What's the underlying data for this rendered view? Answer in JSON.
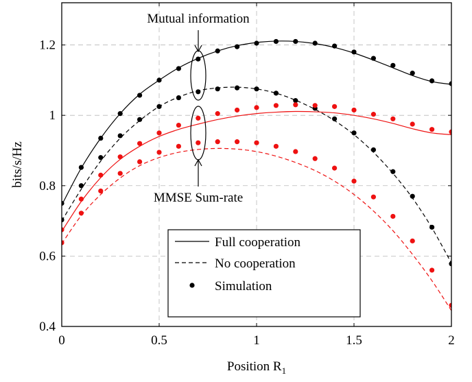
{
  "chart_data": {
    "type": "line",
    "xlabel": "Position R",
    "xlabel_sub": "1",
    "ylabel": "bits/s/Hz",
    "xlim": [
      0,
      2
    ],
    "ylim": [
      0.4,
      1.32
    ],
    "xticks": [
      0,
      0.5,
      1,
      1.5,
      2
    ],
    "xtick_labels": [
      "0",
      "0.5",
      "1",
      "1.5",
      "2"
    ],
    "yticks": [
      0.4,
      0.6,
      0.8,
      1.0,
      1.2
    ],
    "ytick_labels": [
      "0.4",
      "0.6",
      "0.8",
      "1",
      "1.2"
    ],
    "grid": true,
    "legend_position": "bottom-center",
    "legend": [
      {
        "label": "Full cooperation",
        "style": "solid"
      },
      {
        "label": "No cooperation",
        "style": "dashed"
      },
      {
        "label": "Simulation",
        "style": "marker"
      }
    ],
    "annotations": [
      {
        "text": "Mutual information",
        "x": 0.7,
        "y": 1.13
      },
      {
        "text": "MMSE Sum-rate",
        "x": 0.7,
        "y": 0.95
      }
    ],
    "colors": {
      "mutual_information": "#000000",
      "mmse": "#ee1111"
    },
    "series": [
      {
        "group": "mutual_information",
        "style": "solid",
        "color": "#000000",
        "x": [
          0,
          0.1,
          0.2,
          0.3,
          0.4,
          0.5,
          0.6,
          0.7,
          0.8,
          0.9,
          1.0,
          1.1,
          1.2,
          1.3,
          1.4,
          1.5,
          1.6,
          1.7,
          1.8,
          1.9,
          2.0
        ],
        "y": [
          0.745,
          0.85,
          0.935,
          1.005,
          1.06,
          1.1,
          1.135,
          1.162,
          1.183,
          1.198,
          1.207,
          1.211,
          1.21,
          1.204,
          1.193,
          1.177,
          1.157,
          1.135,
          1.113,
          1.096,
          1.088
        ]
      },
      {
        "group": "mutual_information",
        "style": "dashed",
        "color": "#000000",
        "x": [
          0,
          0.1,
          0.2,
          0.3,
          0.4,
          0.5,
          0.6,
          0.7,
          0.8,
          0.9,
          1.0,
          1.1,
          1.2,
          1.3,
          1.4,
          1.5,
          1.6,
          1.7,
          1.8,
          1.9,
          2.0
        ],
        "y": [
          0.7,
          0.79,
          0.87,
          0.935,
          0.985,
          1.025,
          1.052,
          1.07,
          1.078,
          1.08,
          1.075,
          1.063,
          1.043,
          1.017,
          0.985,
          0.945,
          0.895,
          0.835,
          0.765,
          0.68,
          0.58
        ]
      },
      {
        "group": "mmse",
        "style": "solid",
        "color": "#ee1111",
        "x": [
          0,
          0.1,
          0.2,
          0.3,
          0.4,
          0.5,
          0.6,
          0.7,
          0.8,
          0.9,
          1.0,
          1.1,
          1.2,
          1.3,
          1.4,
          1.5,
          1.6,
          1.7,
          1.8,
          1.9,
          2.0
        ],
        "y": [
          0.67,
          0.755,
          0.823,
          0.875,
          0.912,
          0.94,
          0.96,
          0.975,
          0.988,
          0.998,
          1.005,
          1.009,
          1.011,
          1.01,
          1.007,
          1.0,
          0.99,
          0.977,
          0.962,
          0.95,
          0.945
        ]
      },
      {
        "group": "mmse",
        "style": "dashed",
        "color": "#ee1111",
        "x": [
          0,
          0.1,
          0.2,
          0.3,
          0.4,
          0.5,
          0.6,
          0.7,
          0.8,
          0.9,
          1.0,
          1.1,
          1.2,
          1.3,
          1.4,
          1.5,
          1.6,
          1.7,
          1.8,
          1.9,
          2.0
        ],
        "y": [
          0.635,
          0.715,
          0.775,
          0.822,
          0.857,
          0.88,
          0.895,
          0.903,
          0.906,
          0.904,
          0.897,
          0.884,
          0.866,
          0.843,
          0.813,
          0.775,
          0.728,
          0.672,
          0.605,
          0.53,
          0.445
        ]
      },
      {
        "group": "mutual_information",
        "style": "marker",
        "color": "#000000",
        "x": [
          0,
          0.1,
          0.2,
          0.3,
          0.4,
          0.5,
          0.6,
          0.7,
          0.8,
          0.9,
          1.0,
          1.1,
          1.2,
          1.3,
          1.4,
          1.5,
          1.6,
          1.7,
          1.8,
          1.9,
          2.0
        ],
        "y": [
          0.75,
          0.852,
          0.935,
          1.005,
          1.057,
          1.1,
          1.133,
          1.16,
          1.183,
          1.195,
          1.205,
          1.21,
          1.21,
          1.205,
          1.197,
          1.18,
          1.162,
          1.142,
          1.12,
          1.098,
          1.09
        ]
      },
      {
        "group": "mutual_information",
        "style": "marker",
        "color": "#000000",
        "x": [
          0,
          0.1,
          0.2,
          0.3,
          0.4,
          0.5,
          0.6,
          0.7,
          0.8,
          0.9,
          1.0,
          1.1,
          1.2,
          1.3,
          1.4,
          1.5,
          1.6,
          1.7,
          1.8,
          1.9,
          2.0
        ],
        "y": [
          0.703,
          0.8,
          0.88,
          0.942,
          0.988,
          1.025,
          1.05,
          1.067,
          1.075,
          1.078,
          1.075,
          1.063,
          1.042,
          1.02,
          0.99,
          0.95,
          0.902,
          0.84,
          0.77,
          0.682,
          0.578
        ]
      },
      {
        "group": "mmse",
        "style": "marker",
        "color": "#ee1111",
        "x": [
          0,
          0.1,
          0.2,
          0.3,
          0.4,
          0.5,
          0.6,
          0.7,
          0.8,
          0.9,
          1.0,
          1.1,
          1.2,
          1.3,
          1.4,
          1.5,
          1.6,
          1.7,
          1.8,
          1.9,
          2.0
        ],
        "y": [
          0.675,
          0.762,
          0.83,
          0.882,
          0.92,
          0.95,
          0.972,
          0.992,
          1.005,
          1.015,
          1.022,
          1.028,
          1.03,
          1.028,
          1.025,
          1.015,
          1.003,
          0.99,
          0.975,
          0.96,
          0.953
        ]
      },
      {
        "group": "mmse",
        "style": "marker",
        "color": "#ee1111",
        "x": [
          0,
          0.1,
          0.2,
          0.3,
          0.4,
          0.5,
          0.6,
          0.7,
          0.8,
          0.9,
          1.0,
          1.1,
          1.2,
          1.3,
          1.4,
          1.5,
          1.6,
          1.7,
          1.8,
          1.9,
          2.0
        ],
        "y": [
          0.638,
          0.722,
          0.785,
          0.835,
          0.868,
          0.895,
          0.912,
          0.922,
          0.925,
          0.925,
          0.922,
          0.912,
          0.897,
          0.877,
          0.85,
          0.813,
          0.768,
          0.713,
          0.643,
          0.56,
          0.46
        ]
      }
    ]
  }
}
